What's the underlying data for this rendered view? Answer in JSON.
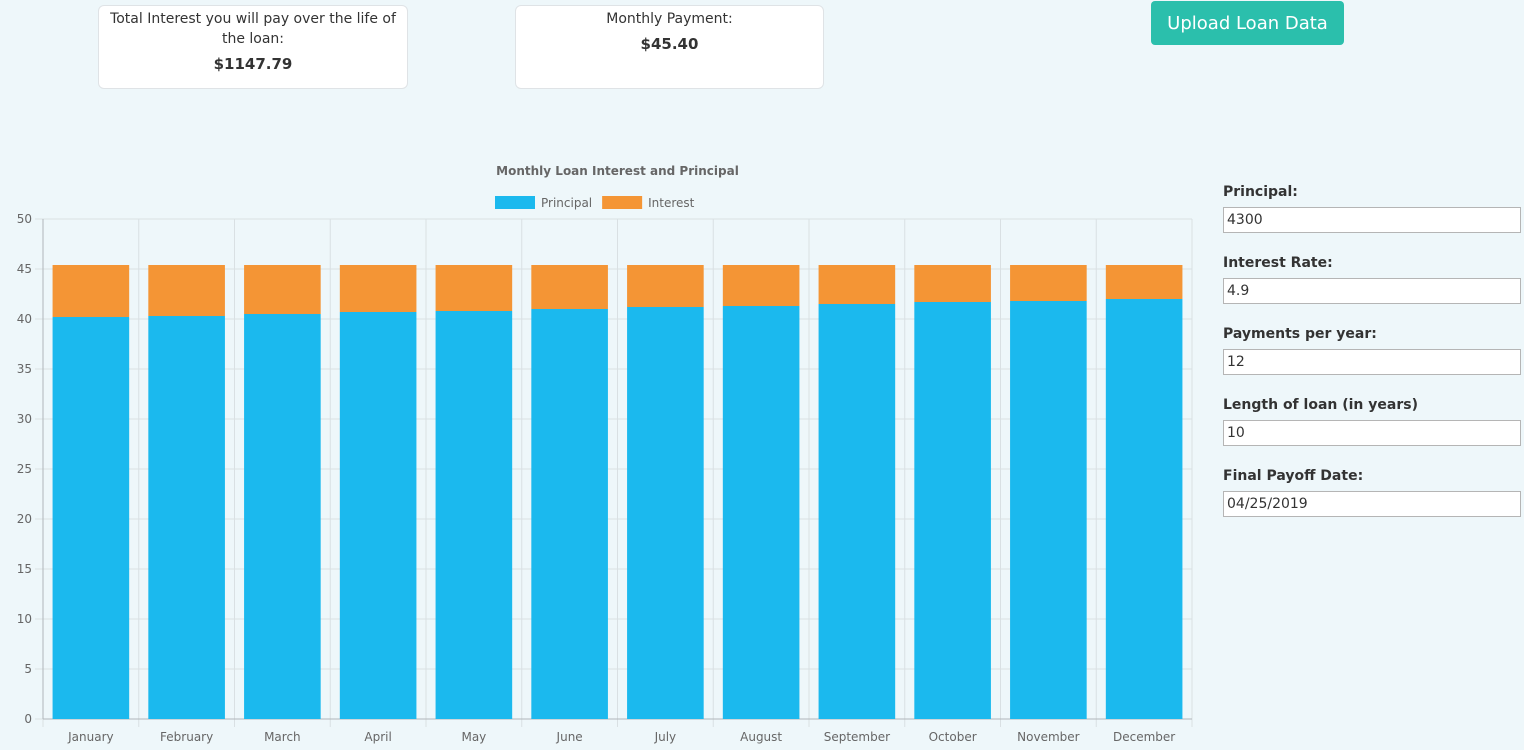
{
  "summary": {
    "total_interest_label": "Total Interest you will pay over the life of the loan:",
    "total_interest_value": "$1147.79",
    "monthly_payment_label": "Monthly Payment:",
    "monthly_payment_value": "$45.40"
  },
  "upload_button": {
    "label": "Upload Loan Data"
  },
  "form": {
    "fields": [
      {
        "label": "Principal:",
        "value": "4300"
      },
      {
        "label": "Interest Rate:",
        "value": "4.9"
      },
      {
        "label": "Payments per year:",
        "value": "12"
      },
      {
        "label": "Length of loan (in years)",
        "value": "10"
      },
      {
        "label": "Final Payoff Date:",
        "value": "04/25/2019"
      }
    ]
  },
  "colors": {
    "principal": "#1bb9ee",
    "interest": "#f49535",
    "button": "#2bbfac",
    "background": "#eef7fa"
  },
  "chart_data": {
    "type": "bar",
    "stacked": true,
    "title": "Monthly Loan Interest and Principal",
    "legend_position": "top",
    "grid": true,
    "categories": [
      "January",
      "February",
      "March",
      "April",
      "May",
      "June",
      "July",
      "August",
      "September",
      "October",
      "November",
      "December"
    ],
    "series": [
      {
        "name": "Principal",
        "color": "#1bb9ee",
        "values": [
          40.2,
          40.3,
          40.5,
          40.7,
          40.8,
          41.0,
          41.2,
          41.3,
          41.5,
          41.7,
          41.8,
          42.0
        ]
      },
      {
        "name": "Interest",
        "color": "#f49535",
        "values": [
          5.2,
          5.1,
          4.9,
          4.7,
          4.6,
          4.4,
          4.2,
          4.1,
          3.9,
          3.7,
          3.6,
          3.4
        ]
      }
    ],
    "ylim": [
      0,
      50
    ],
    "yticks": [
      0,
      5,
      10,
      15,
      20,
      25,
      30,
      35,
      40,
      45,
      50
    ]
  }
}
